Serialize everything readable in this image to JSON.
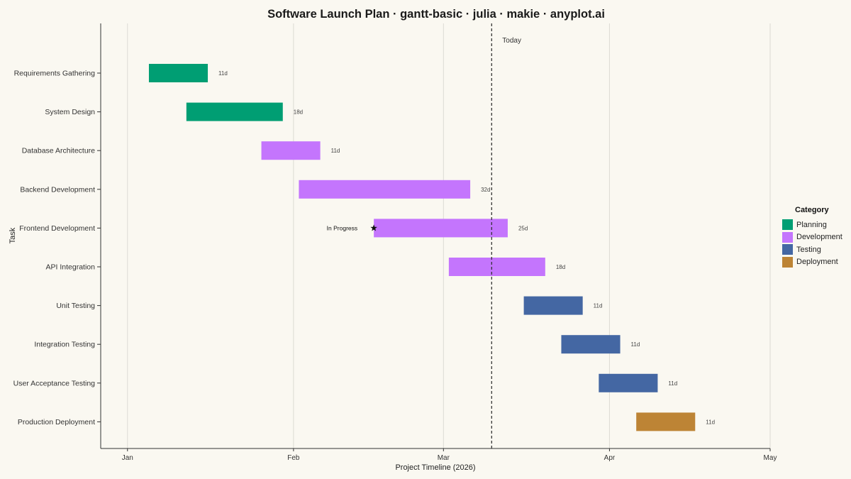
{
  "chart_data": {
    "type": "gantt",
    "title": "Software Launch Plan · gantt-basic · julia · makie · anyplot.ai",
    "xlabel": "Project Timeline (2026)",
    "ylabel": "Task",
    "x_ticks": [
      "Jan",
      "Feb",
      "Mar",
      "Apr",
      "May"
    ],
    "x_tick_dates": [
      "2026-01-01",
      "2026-02-01",
      "2026-03-01",
      "2026-04-01",
      "2026-05-01"
    ],
    "xlim": [
      "2025-12-27",
      "2026-05-01"
    ],
    "grid": "vertical",
    "legend": {
      "title": "Category",
      "placement": "right",
      "items": [
        {
          "name": "Planning",
          "color": "#009E73"
        },
        {
          "name": "Development",
          "color": "#C475FD"
        },
        {
          "name": "Testing",
          "color": "#4467A3"
        },
        {
          "name": "Deployment",
          "color": "#BD8435"
        }
      ]
    },
    "tasks": [
      {
        "name": "Requirements Gathering",
        "category": "Planning",
        "start": "2026-01-05",
        "end": "2026-01-16",
        "label": "11d"
      },
      {
        "name": "System Design",
        "category": "Planning",
        "start": "2026-01-12",
        "end": "2026-01-30",
        "label": "18d"
      },
      {
        "name": "Database Architecture",
        "category": "Development",
        "start": "2026-01-26",
        "end": "2026-02-06",
        "label": "11d"
      },
      {
        "name": "Backend Development",
        "category": "Development",
        "start": "2026-02-02",
        "end": "2026-03-06",
        "label": "32d"
      },
      {
        "name": "Frontend Development",
        "category": "Development",
        "start": "2026-02-16",
        "end": "2026-03-13",
        "label": "25d"
      },
      {
        "name": "API Integration",
        "category": "Development",
        "start": "2026-03-02",
        "end": "2026-03-20",
        "label": "18d"
      },
      {
        "name": "Unit Testing",
        "category": "Testing",
        "start": "2026-03-16",
        "end": "2026-03-27",
        "label": "11d"
      },
      {
        "name": "Integration Testing",
        "category": "Testing",
        "start": "2026-03-23",
        "end": "2026-04-03",
        "label": "11d"
      },
      {
        "name": "User Acceptance Testing",
        "category": "Testing",
        "start": "2026-03-30",
        "end": "2026-04-10",
        "label": "11d"
      },
      {
        "name": "Production Deployment",
        "category": "Deployment",
        "start": "2026-04-06",
        "end": "2026-04-17",
        "label": "11d"
      }
    ],
    "today": {
      "date": "2026-03-10",
      "label": "Today"
    },
    "annotation": {
      "task": "Frontend Development",
      "date": "2026-02-16",
      "marker": "star",
      "label": "In Progress"
    }
  }
}
